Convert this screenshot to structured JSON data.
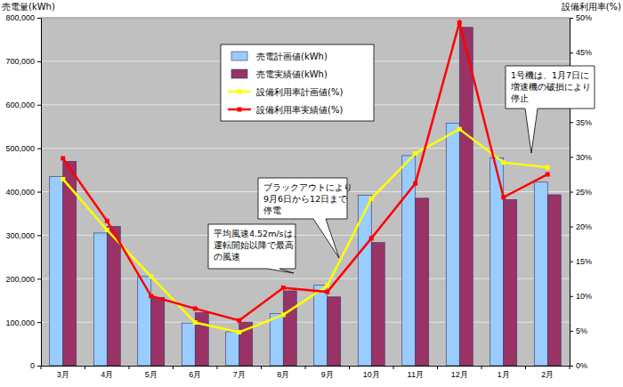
{
  "chart_data": {
    "type": "bar",
    "y_label": "売電量(kWh)",
    "y2_label": "設備利用率(%)",
    "categories": [
      "3月",
      "4月",
      "5月",
      "6月",
      "7月",
      "8月",
      "9月",
      "10月",
      "11月",
      "12月",
      "1月",
      "2月"
    ],
    "series": [
      {
        "name": "売電計画値(kWh)",
        "type": "bar",
        "color": "#99ccff",
        "values": [
          435000,
          305000,
          205000,
          98000,
          78000,
          120000,
          185000,
          392000,
          483000,
          558000,
          478000,
          422000
        ]
      },
      {
        "name": "売電実績値(kWh)",
        "type": "bar",
        "color": "#993366",
        "values": [
          470000,
          320000,
          157000,
          122000,
          100000,
          172000,
          158000,
          283000,
          385000,
          778000,
          382000,
          393000
        ]
      },
      {
        "name": "設備利用率計画値(%)",
        "type": "line",
        "axis": "y2",
        "color": "#ffff00",
        "marker": "square",
        "values": [
          26.8,
          19.5,
          12.8,
          6.2,
          4.8,
          7.3,
          11.5,
          24,
          30.5,
          34,
          29.2,
          28.5
        ]
      },
      {
        "name": "設備利用率実績値(%)",
        "type": "line",
        "axis": "y2",
        "color": "#ff0000",
        "marker": "square",
        "values": [
          29.8,
          20.8,
          10,
          8.2,
          6.5,
          11.2,
          10.6,
          18.3,
          26.2,
          49.3,
          24.2,
          27.5
        ]
      }
    ],
    "ylim": [
      0,
      800000
    ],
    "yticks": [
      0,
      {
        "value": 100000,
        "label": "100,000"
      },
      {
        "value": 200000,
        "label": "200,000"
      },
      {
        "value": 300000,
        "label": "300,000"
      },
      {
        "value": 400000,
        "label": "400,000"
      },
      {
        "value": 500000,
        "label": "500,000"
      },
      {
        "value": 600000,
        "label": "600,000"
      },
      {
        "value": 700000,
        "label": "700,000"
      },
      {
        "value": 800000,
        "label": "800,000"
      }
    ],
    "y2lim": [
      0,
      50
    ],
    "y2ticks": [
      {
        "value": 0,
        "label": "0%"
      },
      {
        "value": 5,
        "label": "5%"
      },
      {
        "value": 10,
        "label": "10%"
      },
      {
        "value": 15,
        "label": "15%"
      },
      {
        "value": 20,
        "label": "20%"
      },
      {
        "value": 25,
        "label": "25%"
      },
      {
        "value": 30,
        "label": "30%"
      },
      {
        "value": 35,
        "label": "35%"
      },
      {
        "value": 40,
        "label": "40%"
      },
      {
        "value": 45,
        "label": "45%"
      },
      {
        "value": 50,
        "label": "50%"
      }
    ],
    "grid": true,
    "legend": "top",
    "annotations": [
      "ブラックアウトにより\n9月6日から12日まで\n停電",
      "平均風速4.52m/sは、\n運転開始以降で最高\nの風速",
      "1号機は、1月7日に\n増速機の破損により\n停止"
    ]
  }
}
